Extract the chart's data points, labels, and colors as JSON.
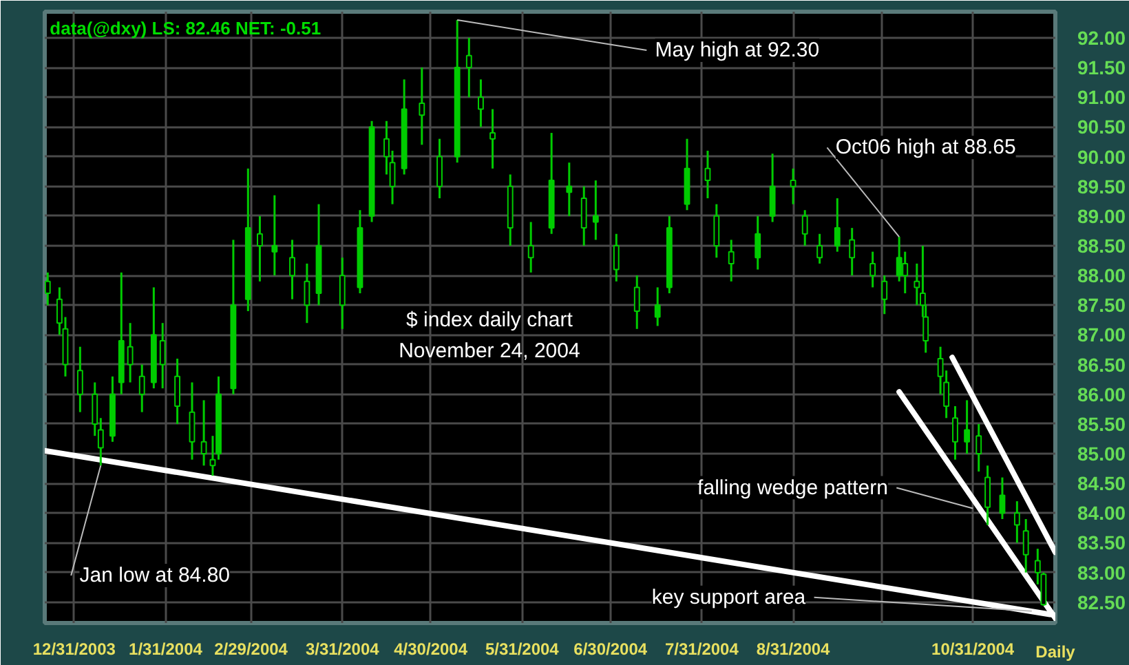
{
  "chart_data": {
    "type": "candlestick",
    "title": "data(@dxy) LS: 82.46  NET: -0.51",
    "annotations": [
      {
        "text": "May high at 92.30",
        "x": "2004-05-09",
        "y": 92.3
      },
      {
        "text": "Oct06 high at 88.65",
        "x": "2004-10-06",
        "y": 88.65
      },
      {
        "text": "Jan low at 84.80",
        "x": "2004-01-09",
        "y": 84.8
      },
      {
        "text": "falling wedge pattern",
        "x": "2004-10-31",
        "y": 84.08
      },
      {
        "text": "key support area",
        "x": "2004-11-20",
        "y": 82.35
      },
      "$ index daily chart",
      "November 24, 2004",
      "Daily"
    ],
    "x": [
      "2003-12-22",
      "2003-12-26",
      "2003-12-28",
      "2004-01-02",
      "2004-01-07",
      "2004-01-09",
      "2004-01-13",
      "2004-01-16",
      "2004-01-19",
      "2004-01-23",
      "2004-01-27",
      "2004-01-30",
      "2004-02-04",
      "2004-02-09",
      "2004-02-13",
      "2004-02-16",
      "2004-02-18",
      "2004-02-23",
      "2004-02-28",
      "2004-03-03",
      "2004-03-08",
      "2004-03-14",
      "2004-03-19",
      "2004-03-23",
      "2004-03-31",
      "2004-04-06",
      "2004-04-10",
      "2004-04-15",
      "2004-04-17",
      "2004-04-21",
      "2004-04-27",
      "2004-05-03",
      "2004-05-09",
      "2004-05-13",
      "2004-05-17",
      "2004-05-21",
      "2004-05-27",
      "2004-06-03",
      "2004-06-10",
      "2004-06-16",
      "2004-06-21",
      "2004-06-25",
      "2004-07-02",
      "2004-07-09",
      "2004-07-16",
      "2004-07-20",
      "2004-07-26",
      "2004-08-02",
      "2004-08-05",
      "2004-08-10",
      "2004-08-19",
      "2004-08-24",
      "2004-08-31",
      "2004-09-04",
      "2004-09-09",
      "2004-09-15",
      "2004-09-20",
      "2004-09-27",
      "2004-10-01",
      "2004-10-06",
      "2004-10-08",
      "2004-10-12",
      "2004-10-14",
      "2004-10-15",
      "2004-10-20",
      "2004-10-22",
      "2004-10-25",
      "2004-10-29",
      "2004-11-02",
      "2004-11-05",
      "2004-11-10",
      "2004-11-15",
      "2004-11-18",
      "2004-11-22",
      "2004-11-24"
    ],
    "ohlc": [
      [
        87.9,
        88.05,
        87.5,
        87.7
      ],
      [
        87.6,
        87.8,
        87.0,
        87.2
      ],
      [
        87.1,
        87.3,
        86.3,
        86.5
      ],
      [
        86.4,
        86.8,
        85.7,
        86.0
      ],
      [
        86.0,
        86.2,
        85.3,
        85.5
      ],
      [
        85.4,
        85.6,
        84.8,
        85.1
      ],
      [
        85.3,
        86.3,
        85.2,
        86.0
      ],
      [
        86.2,
        88.05,
        86.0,
        86.9
      ],
      [
        86.8,
        87.2,
        86.2,
        86.5
      ],
      [
        86.3,
        86.5,
        85.7,
        86.0
      ],
      [
        86.2,
        87.8,
        86.1,
        87.0
      ],
      [
        86.9,
        87.2,
        86.1,
        86.5
      ],
      [
        86.3,
        86.6,
        85.5,
        85.8
      ],
      [
        85.7,
        86.2,
        84.9,
        85.2
      ],
      [
        85.2,
        85.9,
        84.8,
        85.0
      ],
      [
        84.9,
        85.3,
        84.63,
        84.8
      ],
      [
        85.0,
        86.3,
        84.9,
        86.0
      ],
      [
        86.1,
        88.6,
        86.0,
        87.5
      ],
      [
        87.6,
        89.8,
        87.4,
        88.8
      ],
      [
        88.7,
        89.0,
        87.9,
        88.5
      ],
      [
        88.4,
        89.35,
        88.0,
        88.5
      ],
      [
        88.3,
        88.6,
        87.6,
        88.0
      ],
      [
        87.9,
        88.2,
        87.2,
        87.5
      ],
      [
        87.7,
        89.2,
        87.5,
        88.5
      ],
      [
        88.0,
        88.3,
        87.1,
        87.5
      ],
      [
        87.8,
        89.1,
        87.7,
        88.8
      ],
      [
        89.0,
        90.6,
        88.9,
        90.5
      ],
      [
        90.3,
        90.6,
        89.7,
        90.0
      ],
      [
        89.9,
        90.1,
        89.2,
        89.5
      ],
      [
        89.8,
        91.3,
        89.7,
        90.8
      ],
      [
        90.9,
        91.5,
        90.2,
        90.7
      ],
      [
        90.0,
        90.3,
        89.3,
        89.5
      ],
      [
        90.0,
        92.3,
        89.9,
        91.5
      ],
      [
        91.7,
        92.0,
        91.0,
        91.5
      ],
      [
        91.0,
        91.3,
        90.5,
        90.8
      ],
      [
        90.4,
        90.8,
        89.8,
        90.3
      ],
      [
        89.5,
        89.7,
        88.5,
        88.8
      ],
      [
        88.5,
        88.9,
        88.05,
        88.3
      ],
      [
        88.8,
        90.4,
        88.7,
        89.6
      ],
      [
        89.4,
        89.9,
        89.0,
        89.5
      ],
      [
        89.3,
        89.5,
        88.5,
        88.8
      ],
      [
        88.9,
        89.6,
        88.6,
        89.0
      ],
      [
        88.5,
        88.7,
        87.9,
        88.1
      ],
      [
        87.8,
        88.0,
        87.1,
        87.4
      ],
      [
        87.3,
        87.8,
        87.15,
        87.5
      ],
      [
        87.8,
        89.0,
        87.7,
        88.8
      ],
      [
        89.2,
        90.3,
        89.1,
        89.8
      ],
      [
        89.8,
        90.1,
        89.3,
        89.6
      ],
      [
        89.0,
        89.2,
        88.3,
        88.5
      ],
      [
        88.4,
        88.6,
        87.9,
        88.2
      ],
      [
        88.3,
        89.0,
        88.1,
        88.7
      ],
      [
        89.0,
        90.05,
        88.9,
        89.5
      ],
      [
        89.6,
        89.8,
        89.2,
        89.5
      ],
      [
        89.0,
        89.1,
        88.5,
        88.7
      ],
      [
        88.5,
        88.7,
        88.2,
        88.3
      ],
      [
        88.5,
        89.3,
        88.4,
        88.8
      ],
      [
        88.6,
        88.8,
        88.0,
        88.3
      ],
      [
        88.2,
        88.4,
        87.8,
        88.0
      ],
      [
        87.9,
        88.0,
        87.35,
        87.6
      ],
      [
        88.0,
        88.65,
        87.9,
        88.3
      ],
      [
        88.2,
        88.4,
        87.7,
        88.0
      ],
      [
        87.9,
        88.2,
        87.5,
        87.8
      ],
      [
        87.7,
        88.5,
        87.3,
        87.5
      ],
      [
        87.3,
        87.5,
        86.7,
        86.9
      ],
      [
        86.6,
        86.8,
        86.0,
        86.3
      ],
      [
        86.2,
        86.4,
        85.6,
        85.8
      ],
      [
        85.6,
        85.8,
        84.9,
        85.2
      ],
      [
        85.2,
        85.9,
        85.0,
        85.4
      ],
      [
        85.3,
        85.5,
        84.7,
        85.0
      ],
      [
        84.6,
        84.8,
        83.8,
        84.1
      ],
      [
        84.0,
        84.6,
        83.9,
        84.3
      ],
      [
        84.0,
        84.2,
        83.5,
        83.8
      ],
      [
        83.7,
        83.9,
        83.0,
        83.3
      ],
      [
        83.2,
        83.4,
        82.8,
        83.0
      ],
      [
        82.97,
        83.0,
        82.44,
        82.46
      ]
    ],
    "color": "#00cc00",
    "series": [
      {
        "type": "line",
        "color": "#ffffff",
        "x": [
          "2003-12-21",
          "2004-11-28"
        ],
        "values": [
          85.05,
          82.28
        ]
      },
      {
        "type": "line",
        "color": "#ffffff",
        "x": [
          "2004-10-06",
          "2004-11-28"
        ],
        "values": [
          86.04,
          82.23
        ]
      },
      {
        "type": "line",
        "color": "#ffffff",
        "x": [
          "2004-10-24",
          "2004-11-28"
        ],
        "values": [
          86.62,
          83.34
        ]
      }
    ],
    "xlim": [
      "2003-12-21",
      "2004-11-28"
    ],
    "xticks": [
      {
        "value": "2003-12-31",
        "label": "12/31/2003"
      },
      {
        "value": "2004-01-31",
        "label": "1/31/2004"
      },
      {
        "value": "2004-02-29",
        "label": "2/29/2004"
      },
      {
        "value": "2004-03-31",
        "label": "3/31/2004"
      },
      {
        "value": "2004-04-30",
        "label": "4/30/2004"
      },
      {
        "value": "2004-05-31",
        "label": "5/31/2004"
      },
      {
        "value": "2004-06-30",
        "label": "6/30/2004"
      },
      {
        "value": "2004-07-31",
        "label": "7/31/2004"
      },
      {
        "value": "2004-08-31",
        "label": "8/31/2004"
      },
      {
        "value": "2004-09-30",
        "label": null
      },
      {
        "value": "2004-10-31",
        "label": "10/31/2004"
      }
    ],
    "ylim": [
      82.15,
      92.44
    ],
    "yticks": [
      {
        "value": 82.5,
        "label": "82.50"
      },
      {
        "value": 83,
        "label": "83.00"
      },
      {
        "value": 83.5,
        "label": "83.50"
      },
      {
        "value": 84,
        "label": "84.00"
      },
      {
        "value": 84.5,
        "label": "84.50"
      },
      {
        "value": 85,
        "label": "85.00"
      },
      {
        "value": 85.5,
        "label": "85.50"
      },
      {
        "value": 86,
        "label": "86.00"
      },
      {
        "value": 86.5,
        "label": "86.50"
      },
      {
        "value": 87,
        "label": "87.00"
      },
      {
        "value": 87.5,
        "label": "87.50"
      },
      {
        "value": 88,
        "label": "88.00"
      },
      {
        "value": 88.5,
        "label": "88.50"
      },
      {
        "value": 89,
        "label": "89.00"
      },
      {
        "value": 89.5,
        "label": "89.50"
      },
      {
        "value": 90,
        "label": "90.00"
      },
      {
        "value": 90.5,
        "label": "90.50"
      },
      {
        "value": 91,
        "label": "91.00"
      },
      {
        "value": 91.5,
        "label": "91.50"
      },
      {
        "value": 92,
        "label": "92.00"
      }
    ],
    "grid": true,
    "line_style": "solid"
  }
}
